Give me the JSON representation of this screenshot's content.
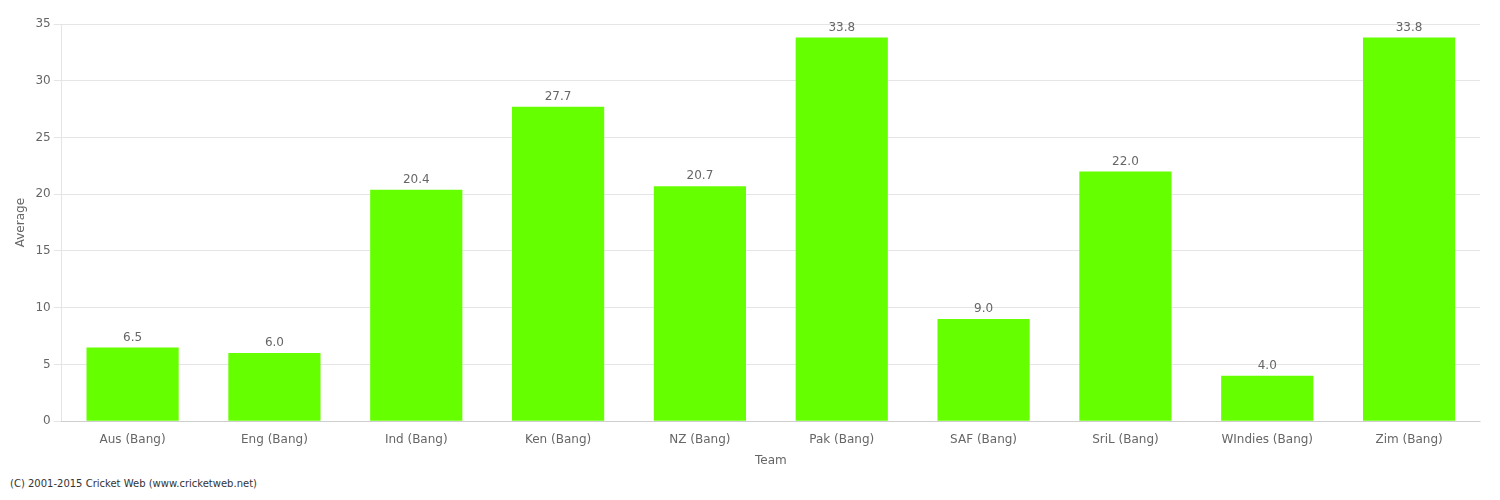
{
  "chart_data": {
    "type": "bar",
    "categories": [
      "Aus (Bang)",
      "Eng (Bang)",
      "Ind (Bang)",
      "Ken (Bang)",
      "NZ (Bang)",
      "Pak (Bang)",
      "SAF (Bang)",
      "SriL (Bang)",
      "WIndies (Bang)",
      "Zim (Bang)"
    ],
    "values": [
      6.5,
      6.0,
      20.4,
      27.7,
      20.7,
      33.8,
      9.0,
      22.0,
      4.0,
      33.8
    ],
    "value_labels": [
      "6.5",
      "6.0",
      "20.4",
      "27.7",
      "20.7",
      "33.8",
      "9.0",
      "22.0",
      "4.0",
      "33.8"
    ],
    "color": "#66ff00",
    "xlabel": "Team",
    "ylabel": "Average",
    "ylim": [
      0,
      35
    ],
    "yticks": [
      0,
      5,
      10,
      15,
      20,
      25,
      30,
      35
    ],
    "grid": true,
    "data_labels": true,
    "annotations": [
      "(C) 2001-2015 Cricket Web (www.cricketweb.net)"
    ]
  }
}
